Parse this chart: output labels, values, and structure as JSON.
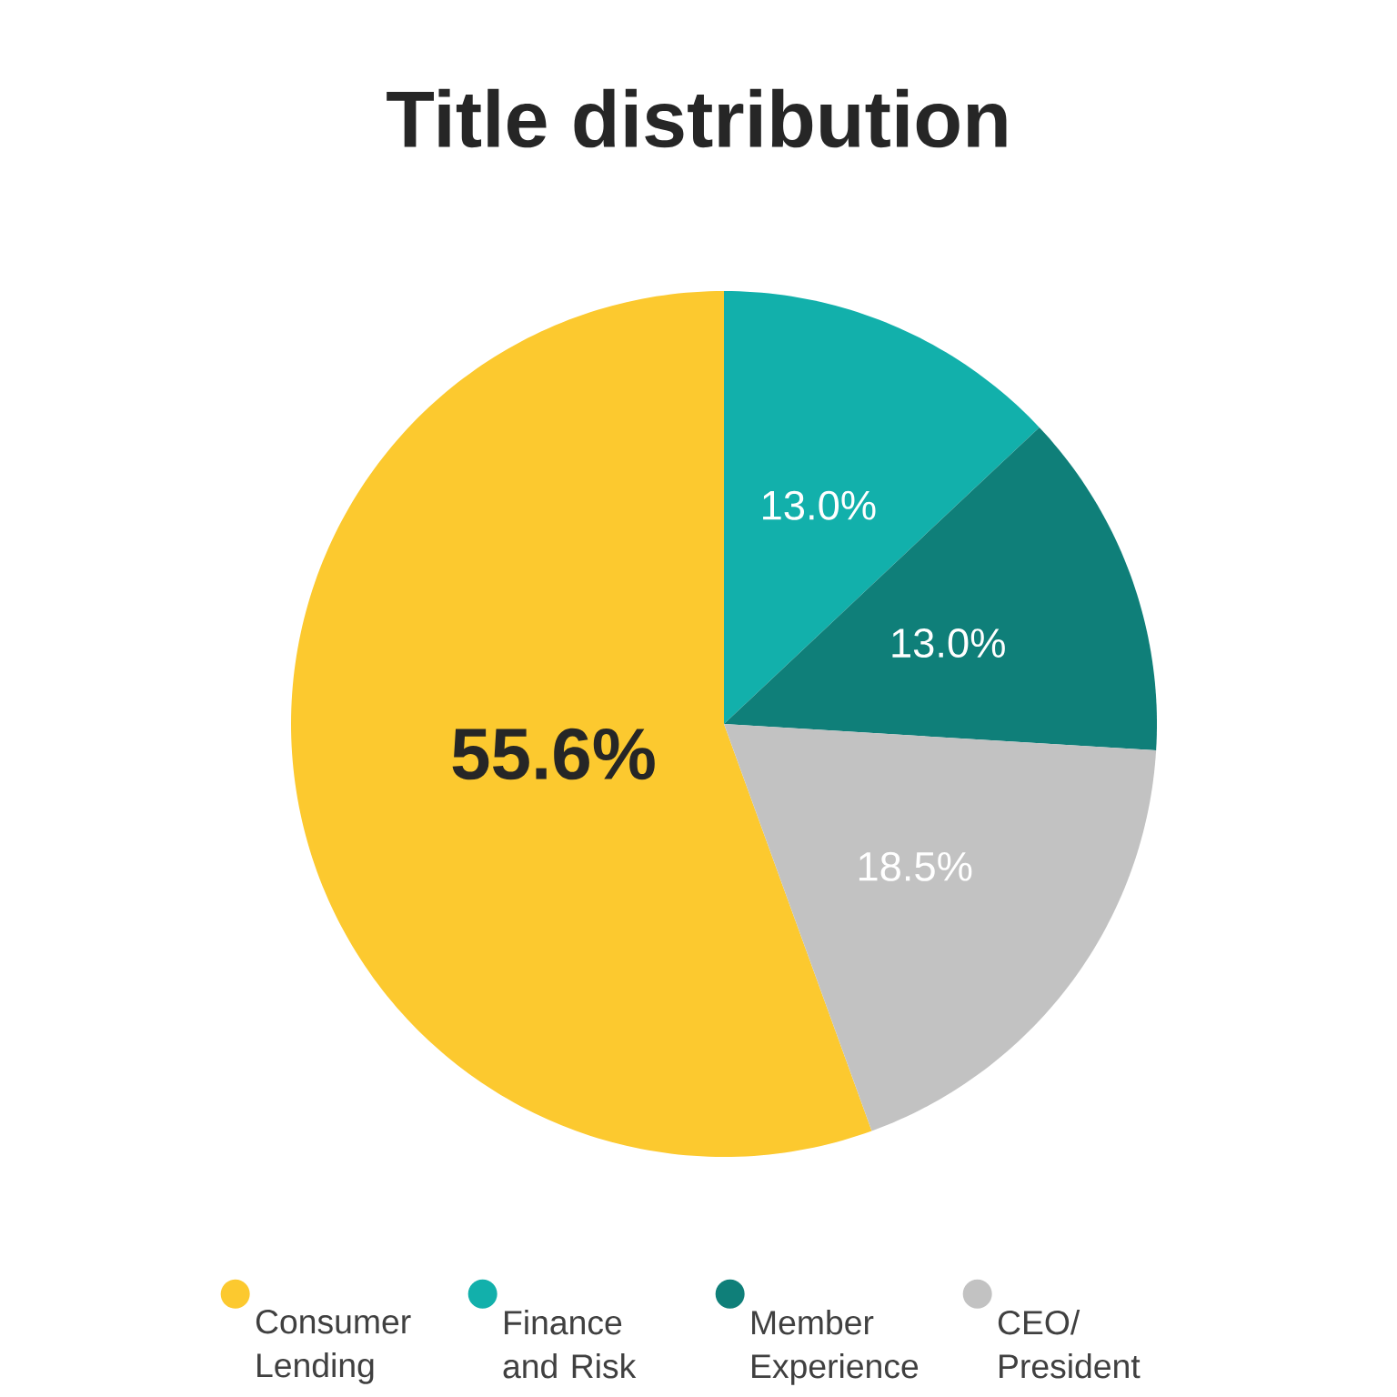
{
  "chart_data": {
    "type": "pie",
    "title": "Title distribution",
    "categories": [
      "Consumer Lending",
      "Finance and Risk",
      "Member Experience",
      "CEO/ President"
    ],
    "values": [
      55.6,
      13.0,
      13.0,
      18.5
    ],
    "value_labels": [
      "55.6%",
      "13.0%",
      "13.0%",
      "18.5%"
    ],
    "colors": [
      "#fcc92f",
      "#12b0ab",
      "#0f7f79",
      "#c2c2c2"
    ],
    "legend": "bottom"
  }
}
